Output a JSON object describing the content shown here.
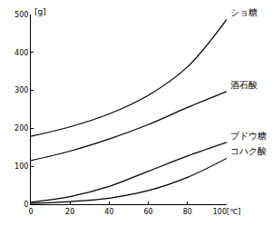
{
  "chart_data": {
    "type": "line",
    "y_label": "[g]",
    "x": [
      0,
      20,
      40,
      60,
      80,
      100
    ],
    "series": [
      {
        "name": "ショ糖",
        "color": "#000000",
        "values": [
          179,
          204,
          238,
          287,
          362,
          487
        ]
      },
      {
        "name": "酒石酸",
        "color": "#000000",
        "values": [
          115,
          140,
          172,
          210,
          255,
          297
        ]
      },
      {
        "name": "ブドウ糖",
        "color": "#000000",
        "values": [
          5,
          20,
          47,
          87,
          127,
          163
        ]
      },
      {
        "name": "コハク酸",
        "color": "#000000",
        "values": [
          2,
          7,
          16,
          36,
          71,
          121
        ]
      }
    ],
    "xlim": [
      0,
      100
    ],
    "xticks": [
      0,
      20,
      40,
      60,
      80,
      {
        "value": 100,
        "label": "100[℃]"
      }
    ],
    "ylim": [
      0,
      500
    ],
    "yticks": [
      0,
      100,
      200,
      300,
      400,
      500
    ],
    "grid": false
  }
}
